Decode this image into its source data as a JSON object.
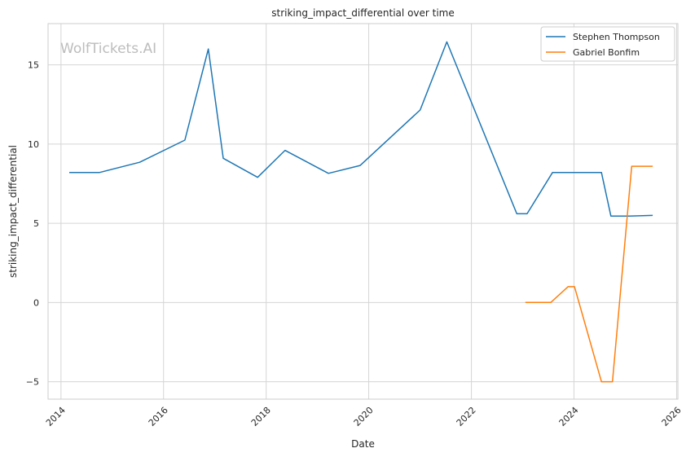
{
  "watermark": "WolfTickets.AI",
  "chart_data": {
    "type": "line",
    "title": "striking_impact_differential over time",
    "xlabel": "Date",
    "ylabel": "striking_impact_differential",
    "xlim": [
      "2013-10-01",
      "2026-01-10"
    ],
    "ylim": [
      -6.1,
      17.6
    ],
    "x_ticks": [
      "2014",
      "2016",
      "2018",
      "2020",
      "2022",
      "2024",
      "2026"
    ],
    "y_ticks": [
      -5,
      0,
      5,
      10,
      15
    ],
    "y_tick_labels": [
      "−5",
      "0",
      "5",
      "10",
      "15"
    ],
    "grid": true,
    "legend_position": "top-right",
    "series": [
      {
        "name": "Stephen Thompson",
        "color": "#1f77b4",
        "points": [
          {
            "x": "2014-03-01",
            "y": 8.2
          },
          {
            "x": "2014-10-01",
            "y": 8.2
          },
          {
            "x": "2015-07-15",
            "y": 8.85
          },
          {
            "x": "2016-06-01",
            "y": 10.25
          },
          {
            "x": "2016-11-15",
            "y": 16.0
          },
          {
            "x": "2017-03-01",
            "y": 9.1
          },
          {
            "x": "2017-11-01",
            "y": 7.9
          },
          {
            "x": "2018-05-15",
            "y": 9.6
          },
          {
            "x": "2019-03-20",
            "y": 8.15
          },
          {
            "x": "2019-11-01",
            "y": 8.65
          },
          {
            "x": "2021-01-01",
            "y": 12.15
          },
          {
            "x": "2021-07-10",
            "y": 16.45
          },
          {
            "x": "2022-11-20",
            "y": 5.6
          },
          {
            "x": "2023-02-01",
            "y": 5.6
          },
          {
            "x": "2023-08-01",
            "y": 8.2
          },
          {
            "x": "2024-07-15",
            "y": 8.2
          },
          {
            "x": "2024-09-20",
            "y": 5.45
          },
          {
            "x": "2025-02-01",
            "y": 5.45
          },
          {
            "x": "2025-07-15",
            "y": 5.5
          }
        ]
      },
      {
        "name": "Gabriel Bonfim",
        "color": "#ff7f0e",
        "points": [
          {
            "x": "2023-01-20",
            "y": 0.0
          },
          {
            "x": "2023-07-20",
            "y": 0.0
          },
          {
            "x": "2023-11-20",
            "y": 1.0
          },
          {
            "x": "2024-01-05",
            "y": 1.0
          },
          {
            "x": "2024-07-15",
            "y": -5.0
          },
          {
            "x": "2024-10-01",
            "y": -5.0
          },
          {
            "x": "2025-02-15",
            "y": 8.6
          },
          {
            "x": "2025-07-15",
            "y": 8.6
          }
        ]
      }
    ]
  }
}
